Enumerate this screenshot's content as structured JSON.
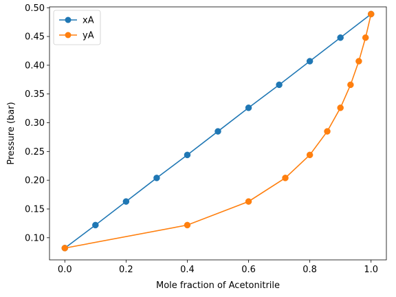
{
  "chart_data": {
    "type": "line",
    "title": "",
    "xlabel": "Mole fraction of Acetonitrile",
    "ylabel": "Pressure (bar)",
    "xlim": [
      -0.05,
      1.05
    ],
    "ylim": [
      0.0615,
      0.5015
    ],
    "x_ticks": [
      "0.0",
      "0.2",
      "0.4",
      "0.6",
      "0.8",
      "1.0"
    ],
    "x_tick_values": [
      0.0,
      0.2,
      0.4,
      0.6,
      0.8,
      1.0
    ],
    "y_ticks": [
      "0.10",
      "0.15",
      "0.20",
      "0.25",
      "0.30",
      "0.35",
      "0.40",
      "0.45",
      "0.50"
    ],
    "y_tick_values": [
      0.1,
      0.15,
      0.2,
      0.25,
      0.3,
      0.35,
      0.4,
      0.45,
      0.5
    ],
    "grid": false,
    "legend_position": "top-left",
    "series": [
      {
        "name": "xA",
        "color": "#1f77b4",
        "marker": "circle",
        "x": [
          0.0,
          0.1,
          0.2,
          0.3,
          0.4,
          0.5,
          0.6,
          0.7,
          0.8,
          0.9,
          1.0
        ],
        "y": [
          0.082,
          0.122,
          0.163,
          0.204,
          0.244,
          0.285,
          0.326,
          0.366,
          0.407,
          0.448,
          0.489
        ]
      },
      {
        "name": "yA",
        "color": "#ff7f0e",
        "marker": "circle",
        "x": [
          0.0,
          0.4,
          0.6,
          0.72,
          0.8,
          0.857,
          0.9,
          0.933,
          0.96,
          0.982,
          1.0
        ],
        "y": [
          0.082,
          0.122,
          0.163,
          0.204,
          0.244,
          0.285,
          0.326,
          0.366,
          0.407,
          0.448,
          0.489
        ]
      }
    ]
  }
}
